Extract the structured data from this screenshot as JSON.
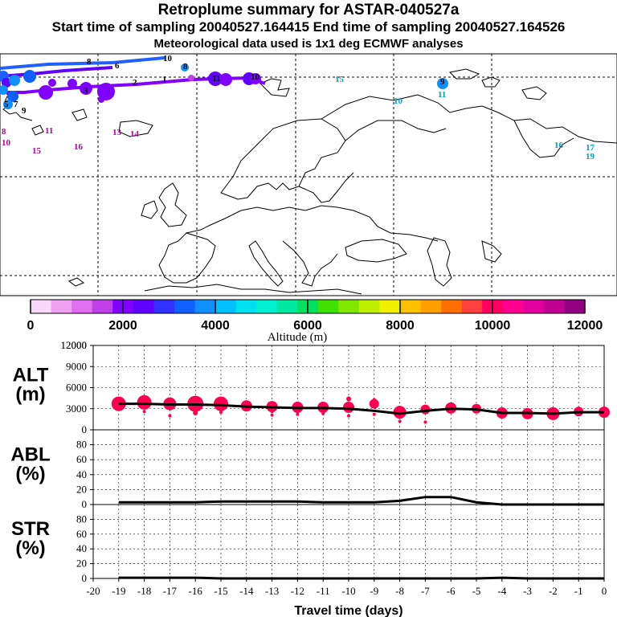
{
  "header": {
    "title": "Retroplume summary for ASTAR-040527a",
    "sampling_line": "Start time of sampling 20040527.164415     End time of sampling 20040527.164526",
    "met_line": "Meteorological data used is 1x1 deg ECMWF analyses"
  },
  "colorbar": {
    "label": "Altitude (m)",
    "ticks": [
      "0",
      "2000",
      "4000",
      "6000",
      "8000",
      "10000",
      "12000"
    ],
    "colors": [
      "#f8d8f8",
      "#f0a0f0",
      "#e070f0",
      "#c040e8",
      "#8000ff",
      "#6000ff",
      "#3030ff",
      "#1060ff",
      "#1090ff",
      "#00c0ff",
      "#00e0f0",
      "#00f0d0",
      "#00e8a0",
      "#00e060",
      "#40e000",
      "#80e800",
      "#c0f000",
      "#f0f000",
      "#ffc000",
      "#ffa000",
      "#ff7000",
      "#ff4040",
      "#ff0060",
      "#ff0090",
      "#e000a0",
      "#c00090",
      "#900080"
    ]
  },
  "map": {
    "labels": [
      {
        "text": "10",
        "x": 203,
        "y": 76,
        "color": "#000000"
      },
      {
        "text": "8",
        "x": 228,
        "y": 86,
        "color": "#000000"
      },
      {
        "text": "8",
        "x": 108,
        "y": 80,
        "color": "#000000"
      },
      {
        "text": "6",
        "x": 143,
        "y": 85,
        "color": "#000000"
      },
      {
        "text": "15",
        "x": 417,
        "y": 102,
        "color": "#00a0c0"
      },
      {
        "text": "9",
        "x": 548,
        "y": 105,
        "color": "#000000"
      },
      {
        "text": "10",
        "x": 490,
        "y": 129,
        "color": "#00a0c0"
      },
      {
        "text": "11",
        "x": 545,
        "y": 121,
        "color": "#00a0c0"
      },
      {
        "text": "11",
        "x": 56,
        "y": 166,
        "color": "#c000a0"
      },
      {
        "text": "13",
        "x": 140,
        "y": 168,
        "color": "#c000a0"
      },
      {
        "text": "14",
        "x": 162,
        "y": 170,
        "color": "#c000a0"
      },
      {
        "text": "15",
        "x": 40,
        "y": 191,
        "color": "#c000a0"
      },
      {
        "text": "16",
        "x": 92,
        "y": 186,
        "color": "#c000a0"
      },
      {
        "text": "10",
        "x": 2,
        "y": 181,
        "color": "#c000a0"
      },
      {
        "text": "8",
        "x": 2,
        "y": 167,
        "color": "#c000a0"
      },
      {
        "text": "16",
        "x": 690,
        "y": 184,
        "color": "#00a0c0"
      },
      {
        "text": "17",
        "x": 729,
        "y": 187,
        "color": "#00a0c0"
      },
      {
        "text": "19",
        "x": 729,
        "y": 198,
        "color": "#00a0c0"
      },
      {
        "text": "9",
        "x": 27,
        "y": 141,
        "color": "#000000"
      },
      {
        "text": "5",
        "x": 5,
        "y": 133,
        "color": "#000000"
      },
      {
        "text": "7",
        "x": 17,
        "y": 133,
        "color": "#000000"
      },
      {
        "text": "2",
        "x": 165,
        "y": 106,
        "color": "#000000"
      },
      {
        "text": "1",
        "x": 202,
        "y": 102,
        "color": "#000000"
      },
      {
        "text": "11",
        "x": 264,
        "y": 101,
        "color": "#000000"
      },
      {
        "text": "10",
        "x": 312,
        "y": 99,
        "color": "#000000"
      },
      {
        "text": "3",
        "x": 104,
        "y": 116,
        "color": "#000000"
      }
    ]
  },
  "chart_data": [
    {
      "type": "scatter",
      "name": "ALT",
      "ylabel": "ALT\n(m)",
      "ylabel_lines": [
        "ALT",
        "(m)"
      ],
      "ylim": [
        0,
        12000
      ],
      "yticks": [
        "0",
        "3000",
        "6000",
        "9000",
        "12000"
      ],
      "xlim": [
        -20,
        0
      ],
      "median_line": {
        "x": [
          -19,
          -18,
          -17,
          -16,
          -15,
          -14,
          -13,
          -12,
          -11,
          -10,
          -9,
          -8,
          -7,
          -6,
          -5,
          -4,
          -3,
          -2,
          -1,
          0
        ],
        "y": [
          3700,
          3700,
          3600,
          3600,
          3500,
          3300,
          3200,
          3100,
          3100,
          3000,
          2700,
          2300,
          2700,
          3000,
          2900,
          2400,
          2400,
          2300,
          2500,
          2500
        ]
      },
      "plume_points": [
        {
          "x": -19,
          "y": 3700,
          "r": 9
        },
        {
          "x": -18,
          "y": 3900,
          "r": 9
        },
        {
          "x": -17,
          "y": 3700,
          "r": 8
        },
        {
          "x": -16,
          "y": 3700,
          "r": 10
        },
        {
          "x": -15,
          "y": 3700,
          "r": 9
        },
        {
          "x": -14,
          "y": 3400,
          "r": 7
        },
        {
          "x": -13,
          "y": 3300,
          "r": 7
        },
        {
          "x": -12,
          "y": 3200,
          "r": 7
        },
        {
          "x": -11,
          "y": 3200,
          "r": 7
        },
        {
          "x": -10,
          "y": 3200,
          "r": 7
        },
        {
          "x": -9,
          "y": 3700,
          "r": 6
        },
        {
          "x": -8,
          "y": 2500,
          "r": 8
        },
        {
          "x": -7,
          "y": 2900,
          "r": 6
        },
        {
          "x": -6,
          "y": 3100,
          "r": 7
        },
        {
          "x": -5,
          "y": 3000,
          "r": 6
        },
        {
          "x": -4,
          "y": 2400,
          "r": 7
        },
        {
          "x": -3,
          "y": 2300,
          "r": 7
        },
        {
          "x": -2,
          "y": 2300,
          "r": 8
        },
        {
          "x": -1,
          "y": 2600,
          "r": 6
        },
        {
          "x": 0,
          "y": 2500,
          "r": 7
        },
        {
          "x": -18,
          "y": 2600,
          "r": 2
        },
        {
          "x": -17,
          "y": 2000,
          "r": 2
        },
        {
          "x": -16,
          "y": 2400,
          "r": 3
        },
        {
          "x": -15,
          "y": 2500,
          "r": 2
        },
        {
          "x": -13,
          "y": 2100,
          "r": 2
        },
        {
          "x": -13,
          "y": 2600,
          "r": 2
        },
        {
          "x": -12,
          "y": 2200,
          "r": 2
        },
        {
          "x": -11,
          "y": 2300,
          "r": 2
        },
        {
          "x": -10,
          "y": 4400,
          "r": 3
        },
        {
          "x": -10,
          "y": 2000,
          "r": 2
        },
        {
          "x": -9,
          "y": 2200,
          "r": 2
        },
        {
          "x": -8,
          "y": 1200,
          "r": 2
        },
        {
          "x": -7,
          "y": 1100,
          "r": 2
        },
        {
          "x": -9,
          "y": 4300,
          "r": 2
        }
      ]
    },
    {
      "type": "line",
      "name": "ABL",
      "ylabel_lines": [
        "ABL",
        "(%)"
      ],
      "ylim": [
        0,
        100
      ],
      "yticks": [
        "0",
        "20",
        "40",
        "60",
        "80"
      ],
      "x": [
        -19,
        -18,
        -17,
        -16,
        -15,
        -14,
        -13,
        -12,
        -11,
        -10,
        -9,
        -8,
        -7,
        -6,
        -5,
        -4,
        -3,
        -2,
        -1,
        0
      ],
      "values": [
        3,
        3,
        3,
        3,
        4,
        4,
        4,
        4,
        3,
        3,
        3,
        5,
        10,
        10,
        3,
        0,
        0,
        0,
        0,
        0
      ]
    },
    {
      "type": "line",
      "name": "STR",
      "ylabel_lines": [
        "STR",
        "(%)"
      ],
      "ylim": [
        0,
        100
      ],
      "yticks": [
        "0",
        "20",
        "40",
        "60",
        "80"
      ],
      "x": [
        -19,
        -18,
        -17,
        -16,
        -15,
        -14,
        -13,
        -12,
        -11,
        -10,
        -9,
        -8,
        -7,
        -6,
        -5,
        -4,
        -3,
        -2,
        -1,
        0
      ],
      "values": [
        1,
        1,
        1,
        1,
        0,
        0,
        0,
        0,
        0,
        0,
        0,
        0,
        0,
        0,
        0,
        1,
        0,
        0,
        0,
        0
      ],
      "xlabel": "Travel time (days)",
      "xticks": [
        "-20",
        "-19",
        "-18",
        "-17",
        "-16",
        "-15",
        "-14",
        "-13",
        "-12",
        "-11",
        "-10",
        "-9",
        "-8",
        "-7",
        "-6",
        "-5",
        "-4",
        "-3",
        "-2",
        "-1",
        "0"
      ]
    }
  ]
}
